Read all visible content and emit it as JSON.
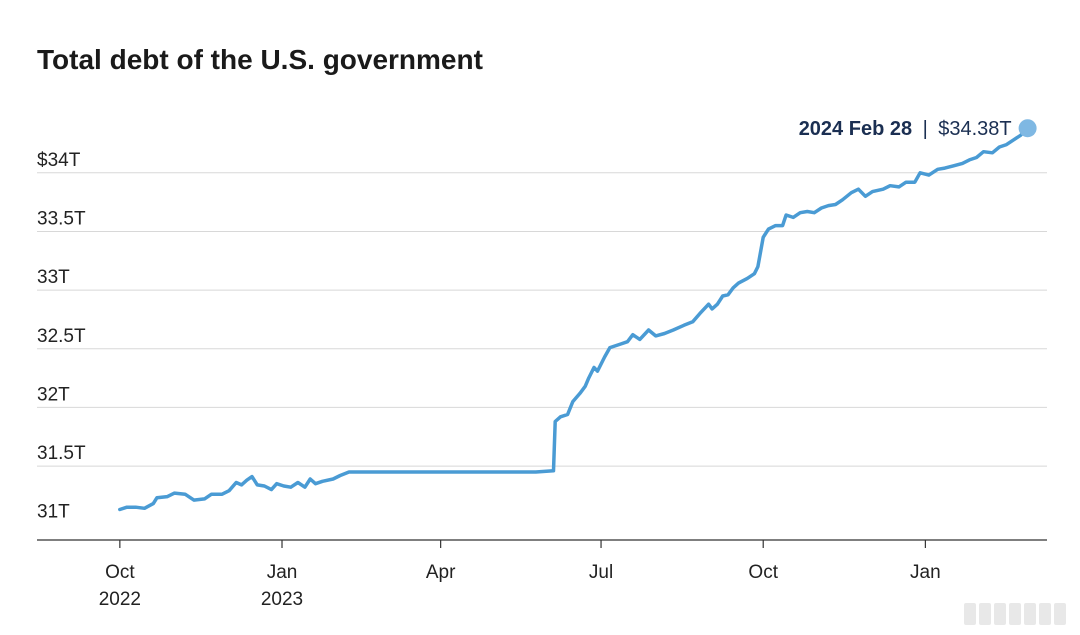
{
  "chart_data": {
    "type": "line",
    "title": "Total debt of the U.S. government",
    "y_ticks": [
      {
        "value": 31.0,
        "label": "31T"
      },
      {
        "value": 31.5,
        "label": "31.5T"
      },
      {
        "value": 32.0,
        "label": "32T"
      },
      {
        "value": 32.5,
        "label": "32.5T"
      },
      {
        "value": 33.0,
        "label": "33T"
      },
      {
        "value": 33.5,
        "label": "33.5T"
      },
      {
        "value": 34.0,
        "label": "$34T"
      }
    ],
    "ylim": [
      30.87,
      34.45
    ],
    "xlim": [
      "2022-08-15",
      "2024-03-10"
    ],
    "x_ticks": [
      {
        "date": "2022-10-01",
        "label": "Oct",
        "sublabel": "2022"
      },
      {
        "date": "2023-01-01",
        "label": "Jan",
        "sublabel": "2023"
      },
      {
        "date": "2023-04-01",
        "label": "Apr",
        "sublabel": ""
      },
      {
        "date": "2023-07-01",
        "label": "Jul",
        "sublabel": ""
      },
      {
        "date": "2023-10-01",
        "label": "Oct",
        "sublabel": ""
      },
      {
        "date": "2024-01-01",
        "label": "Jan",
        "sublabel": ""
      }
    ],
    "series": [
      {
        "color": "#4a9bd4",
        "points": [
          [
            "2022-10-01",
            31.13
          ],
          [
            "2022-10-05",
            31.15
          ],
          [
            "2022-10-10",
            31.15
          ],
          [
            "2022-10-15",
            31.14
          ],
          [
            "2022-10-20",
            31.18
          ],
          [
            "2022-10-22",
            31.23
          ],
          [
            "2022-10-28",
            31.24
          ],
          [
            "2022-11-01",
            31.27
          ],
          [
            "2022-11-07",
            31.26
          ],
          [
            "2022-11-12",
            31.21
          ],
          [
            "2022-11-18",
            31.22
          ],
          [
            "2022-11-22",
            31.26
          ],
          [
            "2022-11-28",
            31.26
          ],
          [
            "2022-12-02",
            31.29
          ],
          [
            "2022-12-06",
            31.36
          ],
          [
            "2022-12-09",
            31.34
          ],
          [
            "2022-12-12",
            31.38
          ],
          [
            "2022-12-15",
            31.41
          ],
          [
            "2022-12-18",
            31.34
          ],
          [
            "2022-12-22",
            31.33
          ],
          [
            "2022-12-26",
            31.3
          ],
          [
            "2022-12-29",
            31.35
          ],
          [
            "2023-01-02",
            31.33
          ],
          [
            "2023-01-06",
            31.32
          ],
          [
            "2023-01-10",
            31.36
          ],
          [
            "2023-01-14",
            31.32
          ],
          [
            "2023-01-17",
            31.39
          ],
          [
            "2023-01-20",
            31.35
          ],
          [
            "2023-01-24",
            31.37
          ],
          [
            "2023-01-30",
            31.39
          ],
          [
            "2023-02-03",
            31.42
          ],
          [
            "2023-02-08",
            31.45
          ],
          [
            "2023-03-01",
            31.45
          ],
          [
            "2023-04-01",
            31.45
          ],
          [
            "2023-05-01",
            31.45
          ],
          [
            "2023-05-25",
            31.45
          ],
          [
            "2023-06-04",
            31.46
          ],
          [
            "2023-06-05",
            31.88
          ],
          [
            "2023-06-08",
            31.92
          ],
          [
            "2023-06-12",
            31.94
          ],
          [
            "2023-06-15",
            32.05
          ],
          [
            "2023-06-19",
            32.12
          ],
          [
            "2023-06-22",
            32.18
          ],
          [
            "2023-06-24",
            32.25
          ],
          [
            "2023-06-27",
            32.34
          ],
          [
            "2023-06-29",
            32.31
          ],
          [
            "2023-07-03",
            32.43
          ],
          [
            "2023-07-06",
            32.51
          ],
          [
            "2023-07-12",
            32.54
          ],
          [
            "2023-07-16",
            32.56
          ],
          [
            "2023-07-19",
            32.62
          ],
          [
            "2023-07-23",
            32.58
          ],
          [
            "2023-07-28",
            32.66
          ],
          [
            "2023-08-01",
            32.61
          ],
          [
            "2023-08-06",
            32.63
          ],
          [
            "2023-08-11",
            32.66
          ],
          [
            "2023-08-17",
            32.7
          ],
          [
            "2023-08-22",
            32.73
          ],
          [
            "2023-08-26",
            32.8
          ],
          [
            "2023-08-31",
            32.88
          ],
          [
            "2023-09-02",
            32.84
          ],
          [
            "2023-09-05",
            32.88
          ],
          [
            "2023-09-08",
            32.95
          ],
          [
            "2023-09-11",
            32.96
          ],
          [
            "2023-09-14",
            33.02
          ],
          [
            "2023-09-17",
            33.06
          ],
          [
            "2023-09-22",
            33.1
          ],
          [
            "2023-09-26",
            33.14
          ],
          [
            "2023-09-28",
            33.2
          ],
          [
            "2023-10-01",
            33.45
          ],
          [
            "2023-10-04",
            33.52
          ],
          [
            "2023-10-08",
            33.55
          ],
          [
            "2023-10-12",
            33.55
          ],
          [
            "2023-10-14",
            33.64
          ],
          [
            "2023-10-18",
            33.62
          ],
          [
            "2023-10-22",
            33.66
          ],
          [
            "2023-10-26",
            33.67
          ],
          [
            "2023-10-30",
            33.66
          ],
          [
            "2023-11-03",
            33.7
          ],
          [
            "2023-11-07",
            33.72
          ],
          [
            "2023-11-11",
            33.73
          ],
          [
            "2023-11-15",
            33.77
          ],
          [
            "2023-11-20",
            33.83
          ],
          [
            "2023-11-24",
            33.86
          ],
          [
            "2023-11-28",
            33.8
          ],
          [
            "2023-12-02",
            33.84
          ],
          [
            "2023-12-08",
            33.86
          ],
          [
            "2023-12-12",
            33.89
          ],
          [
            "2023-12-17",
            33.88
          ],
          [
            "2023-12-21",
            33.92
          ],
          [
            "2023-12-26",
            33.92
          ],
          [
            "2023-12-29",
            34.0
          ],
          [
            "2024-01-03",
            33.98
          ],
          [
            "2024-01-08",
            34.03
          ],
          [
            "2024-01-12",
            34.04
          ],
          [
            "2024-01-17",
            34.06
          ],
          [
            "2024-01-22",
            34.08
          ],
          [
            "2024-01-26",
            34.11
          ],
          [
            "2024-01-30",
            34.13
          ],
          [
            "2024-02-03",
            34.18
          ],
          [
            "2024-02-08",
            34.17
          ],
          [
            "2024-02-12",
            34.22
          ],
          [
            "2024-02-16",
            34.24
          ],
          [
            "2024-02-20",
            34.28
          ],
          [
            "2024-02-24",
            34.32
          ],
          [
            "2024-02-28",
            34.38
          ]
        ]
      }
    ],
    "annotation": {
      "date_label": "2024 Feb 28",
      "separator": "|",
      "value_label": "$34.38T",
      "date": "2024-02-28",
      "value": 34.38
    },
    "grid": true,
    "gridline_color": "#d8d8d8",
    "axis_color": "#333333",
    "marker_color": "#7fb8e3"
  }
}
